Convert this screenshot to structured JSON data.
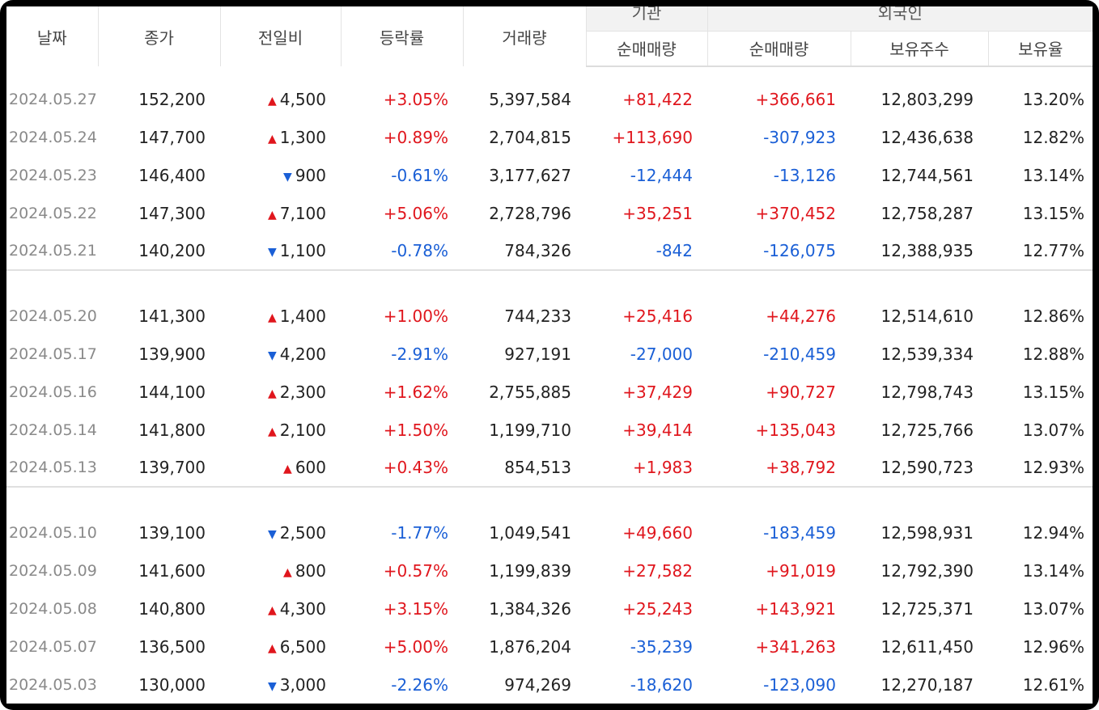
{
  "header": {
    "date": "날짜",
    "close": "종가",
    "change": "전일비",
    "rate": "등락률",
    "volume": "거래량",
    "institution": "기관",
    "foreigner": "외국인",
    "inst_net": "순매매량",
    "for_net": "순매매량",
    "holdings": "보유주수",
    "ratio": "보유율"
  },
  "colors": {
    "up": "#e0161d",
    "down": "#1a5fd6"
  },
  "groups": [
    [
      {
        "date": "2024.05.27",
        "close": "152,200",
        "dir": "up",
        "change": "4,500",
        "rate": "+3.05%",
        "volume": "5,397,584",
        "inst": "+81,422",
        "foreign": "+366,661",
        "holdings": "12,803,299",
        "ratio": "13.20%"
      },
      {
        "date": "2024.05.24",
        "close": "147,700",
        "dir": "up",
        "change": "1,300",
        "rate": "+0.89%",
        "volume": "2,704,815",
        "inst": "+113,690",
        "foreign": "-307,923",
        "holdings": "12,436,638",
        "ratio": "12.82%"
      },
      {
        "date": "2024.05.23",
        "close": "146,400",
        "dir": "down",
        "change": "900",
        "rate": "-0.61%",
        "volume": "3,177,627",
        "inst": "-12,444",
        "foreign": "-13,126",
        "holdings": "12,744,561",
        "ratio": "13.14%"
      },
      {
        "date": "2024.05.22",
        "close": "147,300",
        "dir": "up",
        "change": "7,100",
        "rate": "+5.06%",
        "volume": "2,728,796",
        "inst": "+35,251",
        "foreign": "+370,452",
        "holdings": "12,758,287",
        "ratio": "13.15%"
      },
      {
        "date": "2024.05.21",
        "close": "140,200",
        "dir": "down",
        "change": "1,100",
        "rate": "-0.78%",
        "volume": "784,326",
        "inst": "-842",
        "foreign": "-126,075",
        "holdings": "12,388,935",
        "ratio": "12.77%"
      }
    ],
    [
      {
        "date": "2024.05.20",
        "close": "141,300",
        "dir": "up",
        "change": "1,400",
        "rate": "+1.00%",
        "volume": "744,233",
        "inst": "+25,416",
        "foreign": "+44,276",
        "holdings": "12,514,610",
        "ratio": "12.86%"
      },
      {
        "date": "2024.05.17",
        "close": "139,900",
        "dir": "down",
        "change": "4,200",
        "rate": "-2.91%",
        "volume": "927,191",
        "inst": "-27,000",
        "foreign": "-210,459",
        "holdings": "12,539,334",
        "ratio": "12.88%"
      },
      {
        "date": "2024.05.16",
        "close": "144,100",
        "dir": "up",
        "change": "2,300",
        "rate": "+1.62%",
        "volume": "2,755,885",
        "inst": "+37,429",
        "foreign": "+90,727",
        "holdings": "12,798,743",
        "ratio": "13.15%"
      },
      {
        "date": "2024.05.14",
        "close": "141,800",
        "dir": "up",
        "change": "2,100",
        "rate": "+1.50%",
        "volume": "1,199,710",
        "inst": "+39,414",
        "foreign": "+135,043",
        "holdings": "12,725,766",
        "ratio": "13.07%"
      },
      {
        "date": "2024.05.13",
        "close": "139,700",
        "dir": "up",
        "change": "600",
        "rate": "+0.43%",
        "volume": "854,513",
        "inst": "+1,983",
        "foreign": "+38,792",
        "holdings": "12,590,723",
        "ratio": "12.93%"
      }
    ],
    [
      {
        "date": "2024.05.10",
        "close": "139,100",
        "dir": "down",
        "change": "2,500",
        "rate": "-1.77%",
        "volume": "1,049,541",
        "inst": "+49,660",
        "foreign": "-183,459",
        "holdings": "12,598,931",
        "ratio": "12.94%"
      },
      {
        "date": "2024.05.09",
        "close": "141,600",
        "dir": "up",
        "change": "800",
        "rate": "+0.57%",
        "volume": "1,199,839",
        "inst": "+27,582",
        "foreign": "+91,019",
        "holdings": "12,792,390",
        "ratio": "13.14%"
      },
      {
        "date": "2024.05.08",
        "close": "140,800",
        "dir": "up",
        "change": "4,300",
        "rate": "+3.15%",
        "volume": "1,384,326",
        "inst": "+25,243",
        "foreign": "+143,921",
        "holdings": "12,725,371",
        "ratio": "13.07%"
      },
      {
        "date": "2024.05.07",
        "close": "136,500",
        "dir": "up",
        "change": "6,500",
        "rate": "+5.00%",
        "volume": "1,876,204",
        "inst": "-35,239",
        "foreign": "+341,263",
        "holdings": "12,611,450",
        "ratio": "12.96%"
      },
      {
        "date": "2024.05.03",
        "close": "130,000",
        "dir": "down",
        "change": "3,000",
        "rate": "-2.26%",
        "volume": "974,269",
        "inst": "-18,620",
        "foreign": "-123,090",
        "holdings": "12,270,187",
        "ratio": "12.61%"
      }
    ]
  ]
}
